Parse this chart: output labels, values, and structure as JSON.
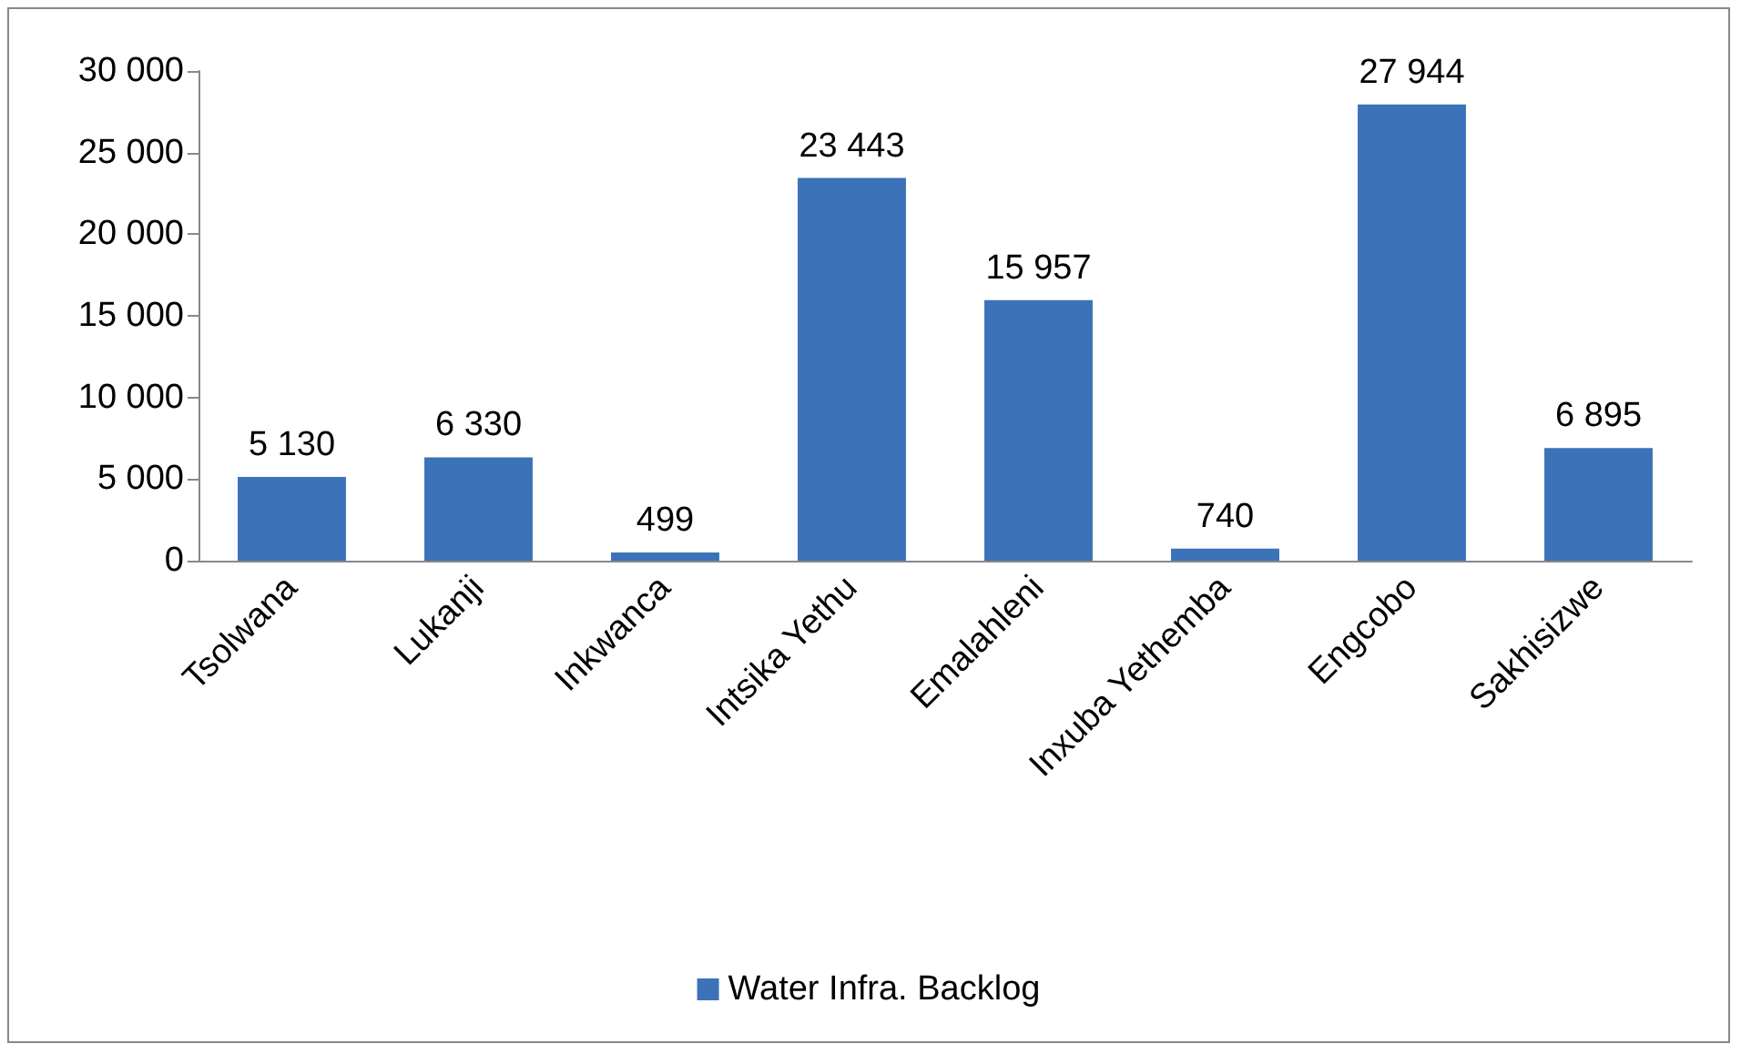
{
  "chart_data": {
    "type": "bar",
    "categories": [
      "Tsolwana",
      "Lukanji",
      "Inkwanca",
      "Intsika Yethu",
      "Emalahleni",
      "Inxuba Yethemba",
      "Engcobo",
      "Sakhisizwe"
    ],
    "series": [
      {
        "name": "Water Infra. Backlog",
        "color": "#3c72b8",
        "values": [
          5130,
          6330,
          499,
          23443,
          15957,
          740,
          27944,
          6895
        ],
        "value_labels": [
          "5 130",
          "6 330",
          "499",
          "23 443",
          "15 957",
          "740",
          "27 944",
          "6 895"
        ]
      }
    ],
    "ylim": [
      0,
      30000
    ],
    "yticks": [
      {
        "value": 0,
        "label": "0"
      },
      {
        "value": 5000,
        "label": "5 000"
      },
      {
        "value": 10000,
        "label": "10 000"
      },
      {
        "value": 15000,
        "label": "15 000"
      },
      {
        "value": 20000,
        "label": "20 000"
      },
      {
        "value": 25000,
        "label": "25 000"
      },
      {
        "value": 30000,
        "label": "30 000"
      }
    ],
    "grid": false,
    "legend": "bottom"
  }
}
